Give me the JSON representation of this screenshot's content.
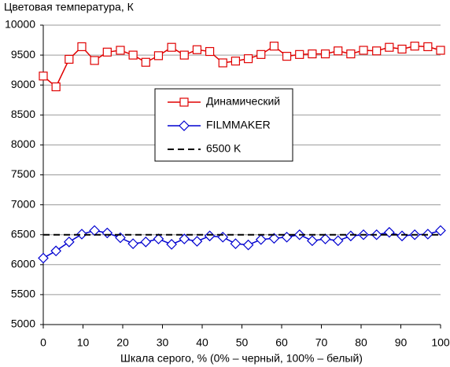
{
  "chart_data": {
    "type": "line",
    "y_title": "Цветовая температура, К",
    "x_title": "Шкала серого, % (0% – черный, 100% – белый)",
    "xlim": [
      0,
      100
    ],
    "xticks": [
      0,
      10,
      20,
      30,
      40,
      50,
      60,
      70,
      80,
      90,
      100
    ],
    "ylim": [
      5000,
      10000
    ],
    "yticks": [
      5000,
      5500,
      6000,
      6500,
      7000,
      7500,
      8000,
      8500,
      9000,
      9500,
      10000
    ],
    "grid": true,
    "series": [
      {
        "name": "Динамический",
        "color": "#e00000",
        "marker": "square",
        "dashed": false,
        "x": [
          0,
          3.2,
          6.5,
          9.7,
          12.9,
          16.1,
          19.4,
          22.6,
          25.8,
          29,
          32.3,
          35.5,
          38.7,
          41.9,
          45.2,
          48.4,
          51.6,
          54.8,
          58.1,
          61.3,
          64.5,
          67.7,
          71,
          74.2,
          77.4,
          80.6,
          83.9,
          87.1,
          90.3,
          93.5,
          96.8,
          100
        ],
        "values": [
          9150,
          8970,
          9430,
          9640,
          9410,
          9550,
          9580,
          9500,
          9380,
          9490,
          9630,
          9500,
          9590,
          9560,
          9370,
          9400,
          9440,
          9510,
          9650,
          9480,
          9510,
          9520,
          9520,
          9570,
          9520,
          9580,
          9570,
          9630,
          9600,
          9650,
          9640,
          9580
        ]
      },
      {
        "name": "FILMMAKER",
        "color": "#0000d0",
        "marker": "diamond",
        "dashed": false,
        "x": [
          0,
          3.2,
          6.5,
          9.7,
          12.9,
          16.1,
          19.4,
          22.6,
          25.8,
          29,
          32.3,
          35.5,
          38.7,
          41.9,
          45.2,
          48.4,
          51.6,
          54.8,
          58.1,
          61.3,
          64.5,
          67.7,
          71,
          74.2,
          77.4,
          80.6,
          83.9,
          87.1,
          90.3,
          93.5,
          96.8,
          100
        ],
        "values": [
          6110,
          6230,
          6380,
          6510,
          6570,
          6530,
          6450,
          6350,
          6380,
          6430,
          6340,
          6430,
          6390,
          6480,
          6460,
          6350,
          6330,
          6420,
          6440,
          6460,
          6500,
          6400,
          6430,
          6400,
          6480,
          6500,
          6500,
          6540,
          6480,
          6500,
          6510,
          6570
        ]
      },
      {
        "name": "6500 K",
        "color": "#000000",
        "marker": null,
        "dashed": true,
        "x": [
          0,
          100
        ],
        "values": [
          6500,
          6500
        ]
      }
    ]
  }
}
